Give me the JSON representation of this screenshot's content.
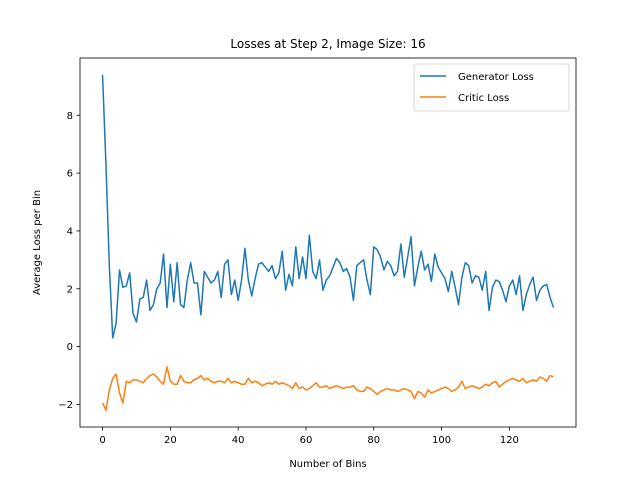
{
  "chart_data": {
    "type": "line",
    "title": "Losses at Step 2, Image Size: 16",
    "xlabel": "Number of Bins",
    "ylabel": "Average Loss per Bin",
    "xlim": [
      -6.65,
      139.65
    ],
    "ylim": [
      -2.78,
      9.98
    ],
    "xticks": [
      0,
      20,
      40,
      60,
      80,
      100,
      120
    ],
    "yticks": [
      -2,
      0,
      2,
      4,
      6,
      8
    ],
    "legend_position": "top-right",
    "grid": false,
    "series": [
      {
        "name": "Generator Loss",
        "color": "#1f77b4",
        "x": [
          0,
          1,
          2,
          3,
          4,
          5,
          6,
          7,
          8,
          9,
          10,
          11,
          12,
          13,
          14,
          15,
          16,
          17,
          18,
          19,
          20,
          21,
          22,
          23,
          24,
          25,
          26,
          27,
          28,
          29,
          30,
          31,
          32,
          33,
          34,
          35,
          36,
          37,
          38,
          39,
          40,
          41,
          42,
          43,
          44,
          45,
          46,
          47,
          48,
          49,
          50,
          51,
          52,
          53,
          54,
          55,
          56,
          57,
          58,
          59,
          60,
          61,
          62,
          63,
          64,
          65,
          66,
          67,
          68,
          69,
          70,
          71,
          72,
          73,
          74,
          75,
          76,
          77,
          78,
          79,
          80,
          81,
          82,
          83,
          84,
          85,
          86,
          87,
          88,
          89,
          90,
          91,
          92,
          93,
          94,
          95,
          96,
          97,
          98,
          99,
          100,
          101,
          102,
          103,
          104,
          105,
          106,
          107,
          108,
          109,
          110,
          111,
          112,
          113,
          114,
          115,
          116,
          117,
          118,
          119,
          120,
          121,
          122,
          123,
          124,
          125,
          126,
          127,
          128,
          129,
          130,
          131,
          132,
          133
        ],
        "y": [
          9.4,
          6.3,
          2.8,
          0.3,
          0.8,
          2.65,
          2.05,
          2.1,
          2.55,
          1.15,
          0.85,
          1.65,
          1.7,
          2.3,
          1.25,
          1.45,
          2.0,
          2.2,
          3.2,
          1.35,
          2.85,
          1.55,
          2.9,
          1.45,
          1.35,
          2.3,
          2.9,
          2.2,
          2.2,
          1.1,
          2.6,
          2.4,
          2.2,
          2.3,
          2.6,
          1.7,
          2.85,
          3.0,
          1.8,
          2.3,
          1.6,
          2.3,
          3.4,
          2.3,
          1.75,
          2.35,
          2.85,
          2.9,
          2.75,
          2.6,
          2.8,
          2.35,
          2.55,
          3.3,
          1.95,
          2.5,
          2.1,
          3.45,
          2.35,
          3.1,
          2.35,
          3.85,
          2.6,
          2.35,
          3.0,
          1.95,
          2.3,
          2.45,
          2.75,
          3.05,
          2.9,
          2.6,
          2.7,
          2.4,
          1.6,
          2.8,
          2.9,
          3.0,
          2.3,
          1.8,
          3.45,
          3.35,
          3.1,
          2.65,
          2.95,
          2.8,
          2.45,
          2.6,
          3.55,
          2.4,
          3.1,
          3.8,
          2.1,
          2.75,
          3.3,
          2.65,
          2.85,
          2.25,
          3.2,
          2.75,
          2.55,
          2.35,
          1.9,
          2.6,
          2.05,
          1.45,
          2.4,
          2.9,
          2.8,
          2.2,
          2.45,
          2.4,
          1.95,
          2.6,
          1.25,
          2.05,
          2.3,
          2.25,
          1.95,
          1.55,
          2.1,
          2.3,
          1.8,
          2.45,
          1.25,
          1.8,
          2.15,
          2.4,
          1.6,
          1.95,
          2.1,
          2.15,
          1.7,
          1.35
        ]
      },
      {
        "name": "Critic Loss",
        "color": "#ff7f0e",
        "x": [
          0,
          1,
          2,
          3,
          4,
          5,
          6,
          7,
          8,
          9,
          10,
          11,
          12,
          13,
          14,
          15,
          16,
          17,
          18,
          19,
          20,
          21,
          22,
          23,
          24,
          25,
          26,
          27,
          28,
          29,
          30,
          31,
          32,
          33,
          34,
          35,
          36,
          37,
          38,
          39,
          40,
          41,
          42,
          43,
          44,
          45,
          46,
          47,
          48,
          49,
          50,
          51,
          52,
          53,
          54,
          55,
          56,
          57,
          58,
          59,
          60,
          61,
          62,
          63,
          64,
          65,
          66,
          67,
          68,
          69,
          70,
          71,
          72,
          73,
          74,
          75,
          76,
          77,
          78,
          79,
          80,
          81,
          82,
          83,
          84,
          85,
          86,
          87,
          88,
          89,
          90,
          91,
          92,
          93,
          94,
          95,
          96,
          97,
          98,
          99,
          100,
          101,
          102,
          103,
          104,
          105,
          106,
          107,
          108,
          109,
          110,
          111,
          112,
          113,
          114,
          115,
          116,
          117,
          118,
          119,
          120,
          121,
          122,
          123,
          124,
          125,
          126,
          127,
          128,
          129,
          130,
          131,
          132,
          133
        ],
        "y": [
          -1.95,
          -2.2,
          -1.5,
          -1.1,
          -0.95,
          -1.6,
          -1.95,
          -1.2,
          -1.25,
          -1.15,
          -1.15,
          -1.2,
          -1.25,
          -1.1,
          -1.0,
          -0.95,
          -1.05,
          -1.2,
          -1.3,
          -0.7,
          -1.2,
          -1.3,
          -1.3,
          -1.0,
          -1.2,
          -1.25,
          -1.25,
          -1.15,
          -1.1,
          -1.0,
          -1.15,
          -1.1,
          -1.2,
          -1.25,
          -1.2,
          -1.2,
          -1.25,
          -1.1,
          -1.25,
          -1.2,
          -1.25,
          -1.3,
          -1.3,
          -1.1,
          -1.25,
          -1.2,
          -1.25,
          -1.35,
          -1.3,
          -1.25,
          -1.3,
          -1.2,
          -1.3,
          -1.25,
          -1.3,
          -1.35,
          -1.45,
          -1.25,
          -1.45,
          -1.4,
          -1.5,
          -1.45,
          -1.35,
          -1.25,
          -1.4,
          -1.4,
          -1.35,
          -1.45,
          -1.4,
          -1.35,
          -1.4,
          -1.45,
          -1.4,
          -1.4,
          -1.35,
          -1.5,
          -1.55,
          -1.55,
          -1.4,
          -1.45,
          -1.55,
          -1.65,
          -1.55,
          -1.5,
          -1.45,
          -1.5,
          -1.5,
          -1.55,
          -1.5,
          -1.45,
          -1.5,
          -1.55,
          -1.8,
          -1.55,
          -1.6,
          -1.75,
          -1.5,
          -1.6,
          -1.55,
          -1.5,
          -1.45,
          -1.4,
          -1.45,
          -1.55,
          -1.5,
          -1.4,
          -1.2,
          -1.45,
          -1.4,
          -1.35,
          -1.4,
          -1.45,
          -1.4,
          -1.3,
          -1.35,
          -1.25,
          -1.2,
          -1.4,
          -1.3,
          -1.2,
          -1.15,
          -1.1,
          -1.15,
          -1.2,
          -1.1,
          -1.25,
          -1.2,
          -1.15,
          -1.2,
          -1.05,
          -1.1,
          -1.2,
          -1.0,
          -1.05
        ]
      }
    ]
  }
}
